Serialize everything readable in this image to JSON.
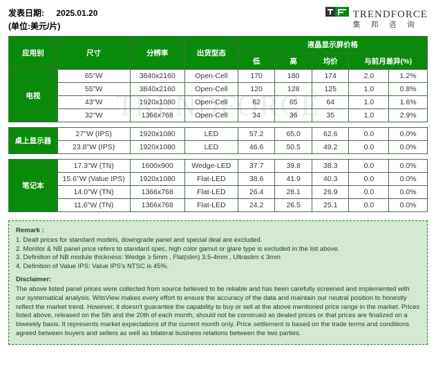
{
  "header": {
    "date_label": "发表日期:",
    "date_value": "2025.01.20",
    "unit_label": "(单位:美元/片)"
  },
  "logo": {
    "en": "TRENDFORCE",
    "cn": "集 邦 咨 询"
  },
  "columns": {
    "appcat": "应用别",
    "size": "尺寸",
    "resolution": "分辨率",
    "shiptype": "出货型态",
    "price_group": "液晶显示屏价格",
    "low": "低",
    "high": "高",
    "avg": "均价",
    "vs_prev": "与前月差异(%)"
  },
  "groups": [
    {
      "category": "电视",
      "rows": [
        {
          "size": "65''W",
          "res": "3840x2160",
          "ship": "Open-Cell",
          "low": "170",
          "high": "180",
          "avg": "174",
          "d1": "2.0",
          "d2": "1.2%"
        },
        {
          "size": "55''W",
          "res": "3840x2160",
          "ship": "Open-Cell",
          "low": "120",
          "high": "128",
          "avg": "125",
          "d1": "1.0",
          "d2": "0.8%"
        },
        {
          "size": "43''W",
          "res": "1920x1080",
          "ship": "Open-Cell",
          "low": "62",
          "high": "65",
          "avg": "64",
          "d1": "1.0",
          "d2": "1.6%"
        },
        {
          "size": "32''W",
          "res": "1366x768",
          "ship": "Open-Cell",
          "low": "34",
          "high": "36",
          "avg": "35",
          "d1": "1.0",
          "d2": "2.9%"
        }
      ]
    },
    {
      "category": "桌上显示器",
      "rows": [
        {
          "size": "27''W (IPS)",
          "res": "1920x1080",
          "ship": "LED",
          "low": "57.2",
          "high": "65.0",
          "avg": "62.6",
          "d1": "0.0",
          "d2": "0.0%"
        },
        {
          "size": "23.8''W (IPS)",
          "res": "1920x1080",
          "ship": "LED",
          "low": "46.6",
          "high": "50.5",
          "avg": "49.2",
          "d1": "0.0",
          "d2": "0.0%"
        }
      ]
    },
    {
      "category": "笔记本",
      "rows": [
        {
          "size": "17.3''W (TN)",
          "res": "1600x900",
          "ship": "Wedge-LED",
          "low": "37.7",
          "high": "39.8",
          "avg": "38.3",
          "d1": "0.0",
          "d2": "0.0%"
        },
        {
          "size": "15.6''W (Value IPS)",
          "res": "1920x1080",
          "ship": "Flat-LED",
          "low": "38.6",
          "high": "41.9",
          "avg": "40.3",
          "d1": "0.0",
          "d2": "0.0%"
        },
        {
          "size": "14.0''W (TN)",
          "res": "1366x768",
          "ship": "Flat-LED",
          "low": "26.4",
          "high": "28.1",
          "avg": "26.9",
          "d1": "0.0",
          "d2": "0.0%"
        },
        {
          "size": "11.6''W (TN)",
          "res": "1366x768",
          "ship": "Flat-LED",
          "low": "24.2",
          "high": "26.5",
          "avg": "25.1",
          "d1": "0.0",
          "d2": "0.0%"
        }
      ]
    }
  ],
  "remark": {
    "title": "Remark :",
    "lines": [
      "1. Dealt prices for standard models, downgrade panel and special deal are excluded.",
      "2. Monitor & NB panel price refers to standard spec, high color gamut or glare type is excluded in the list above.",
      "3. Definition of NB module thickness: Wedge ≥ 5mm , Flat(slim) 3.5-4mm , Ultraslim ≤ 3mm",
      "4. Definition of Value IPS: Value IPS's NTSC is 45%."
    ],
    "disclaimer_title": "Disclaimer:",
    "disclaimer": "The above listed panel prices were collected from source believed to be reliable and has been carefully screened and implemented with our systematical analysis. WitsView makes every effort to ensure the accuracy of the data and maintain our neutral position to honestly reflect the market trend. However, it doesn't guarantee the capability to buy or sell at the above mentioned price range in the market. Prices listed above, released on the 5th and the 20th of each month, should not be construed as dealed prices or that prices are finalized on a biweekly basis. It represents market expectations of the current month only. Price settlement is based on the trade terms and conditions agreed between buyers and sellers as well as bilateral business relations between the two parties."
  },
  "style": {
    "green": "#0a8a0a",
    "border": "#4a6b4a",
    "remark_bg": "#d4e8d4"
  }
}
